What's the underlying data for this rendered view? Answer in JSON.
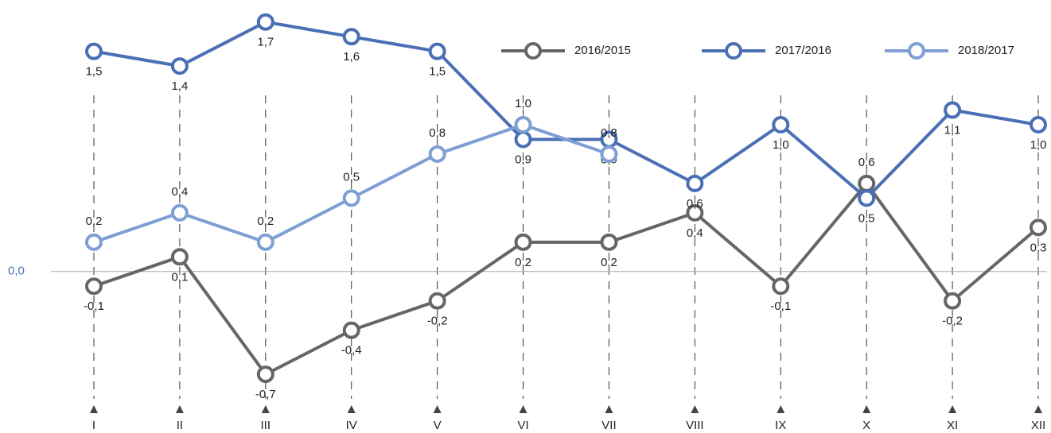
{
  "chart_data": {
    "type": "line",
    "categories": [
      "I",
      "II",
      "III",
      "IV",
      "V",
      "VI",
      "VII",
      "VIII",
      "IX",
      "X",
      "XI",
      "XII"
    ],
    "series": [
      {
        "name": "2016/2015",
        "color": "#666666",
        "values": [
          -0.1,
          0.1,
          -0.7,
          -0.4,
          -0.2,
          0.2,
          0.2,
          0.4,
          -0.1,
          0.6,
          -0.2,
          0.3
        ],
        "value_labels": [
          "-0,1",
          "0,1",
          "-0,7",
          "-0,4",
          "-0,2",
          "0,2",
          "0,2",
          "0,4",
          "-0,1",
          "0,6",
          "-0,2",
          "0,3"
        ]
      },
      {
        "name": "2017/2016",
        "color": "#4a6fb5",
        "values": [
          1.5,
          1.4,
          1.7,
          1.6,
          1.5,
          0.9,
          0.9,
          0.6,
          1.0,
          0.5,
          1.1,
          1.0
        ],
        "value_labels": [
          "1,5",
          "1,4",
          "1,7",
          "1,6",
          "1,5",
          "0,9",
          "0,9",
          "0,6",
          "1,0",
          "0,5",
          "1,1",
          "1,0"
        ]
      },
      {
        "name": "2018/2017",
        "color": "#7f9fd4",
        "values": [
          0.2,
          0.4,
          0.2,
          0.5,
          0.8,
          1.0,
          0.8,
          null,
          null,
          null,
          null,
          null
        ],
        "value_labels": [
          "0,2",
          "0,4",
          "0,2",
          "0,5",
          "0,8",
          "1,0",
          "0,8",
          null,
          null,
          null,
          null,
          null
        ]
      }
    ],
    "ylim": [
      -1.1,
      1.85
    ],
    "yticks": [
      {
        "value": 0,
        "label": "0,0"
      }
    ],
    "legend": "top-right"
  }
}
